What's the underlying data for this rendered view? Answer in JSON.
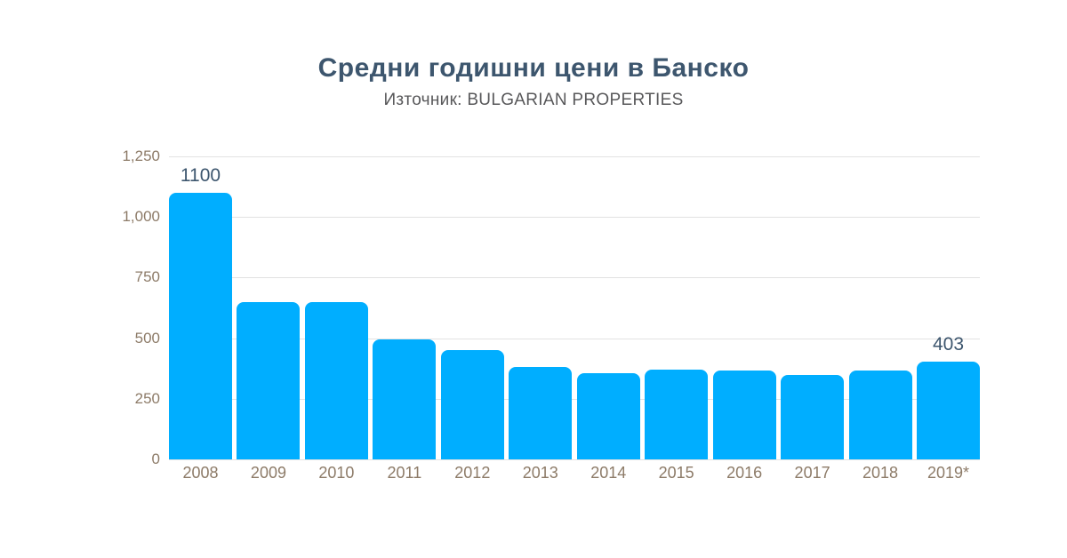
{
  "title": "Средни годишни цени в Банско",
  "subtitle": "Източник: BULGARIAN PROPERTIES",
  "colors": {
    "background": "#ffffff",
    "bar": "#00aeff",
    "title": "#3d566e",
    "subtitle": "#58585a",
    "axis_label": "#8d7b68",
    "gridline": "#e2e2e2",
    "value_label": "#3d566e"
  },
  "chart_data": {
    "type": "bar",
    "title": "Средни годишни цени в Банско",
    "subtitle": "Източник: BULGARIAN PROPERTIES",
    "categories": [
      "2008",
      "2009",
      "2010",
      "2011",
      "2012",
      "2013",
      "2014",
      "2015",
      "2016",
      "2017",
      "2018",
      "2019*"
    ],
    "values": [
      1100,
      650,
      650,
      495,
      450,
      380,
      355,
      370,
      365,
      350,
      365,
      403
    ],
    "labeled_points": [
      {
        "index": 0,
        "label": "1100"
      },
      {
        "index": 11,
        "label": "403"
      }
    ],
    "y_ticks": [
      "1,250",
      "1,000",
      "750",
      "500",
      "250",
      "0"
    ],
    "y_tick_values": [
      1250,
      1000,
      750,
      500,
      250,
      0
    ],
    "ylim": [
      0,
      1250
    ],
    "xlabel": "",
    "ylabel": "",
    "grid": true,
    "legend": false
  }
}
